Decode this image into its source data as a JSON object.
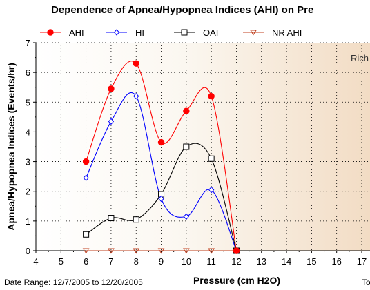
{
  "footer": {
    "date_range": "Date Range:  12/7/2005 to 12/20/2005",
    "right_text": "To"
  },
  "chart_data": {
    "type": "line",
    "title": "Dependence of Apnea/Hypopnea Indices (AHI) on Pre",
    "xlabel": "Pressure (cm H2O)",
    "ylabel": "Apnea/Hypopnea Indices (Events/hr)",
    "xlim": [
      4,
      17
    ],
    "ylim": [
      0,
      7
    ],
    "xticks": [
      4,
      5,
      6,
      7,
      8,
      9,
      10,
      11,
      12,
      13,
      14,
      15,
      16,
      17
    ],
    "yticks": [
      0,
      1,
      2,
      3,
      4,
      5,
      6,
      7
    ],
    "grid": true,
    "legend_position": "top",
    "annotation": "Rich",
    "series": [
      {
        "name": "AHI",
        "color": "#ff0000",
        "marker": "filled-circle",
        "x": [
          6,
          7,
          8,
          9,
          10,
          11,
          12
        ],
        "y": [
          3.0,
          5.45,
          6.3,
          3.65,
          4.7,
          5.2,
          0.0
        ]
      },
      {
        "name": "HI",
        "color": "#0000ff",
        "marker": "hollow-diamond",
        "x": [
          6,
          7,
          8,
          9,
          10,
          11,
          12
        ],
        "y": [
          2.45,
          4.35,
          5.2,
          1.75,
          1.15,
          2.05,
          0.0
        ]
      },
      {
        "name": "OAI",
        "color": "#000000",
        "marker": "hollow-square",
        "x": [
          6,
          7,
          8,
          9,
          10,
          11,
          12
        ],
        "y": [
          0.55,
          1.1,
          1.05,
          1.9,
          3.5,
          3.1,
          0.0
        ]
      },
      {
        "name": "NR AHI",
        "color": "#c04020",
        "marker": "hollow-triangle-down",
        "x": [
          6,
          7,
          8,
          9,
          10,
          11,
          12
        ],
        "y": [
          0.0,
          0.0,
          0.0,
          0.0,
          0.0,
          0.0,
          0.0
        ]
      }
    ]
  }
}
